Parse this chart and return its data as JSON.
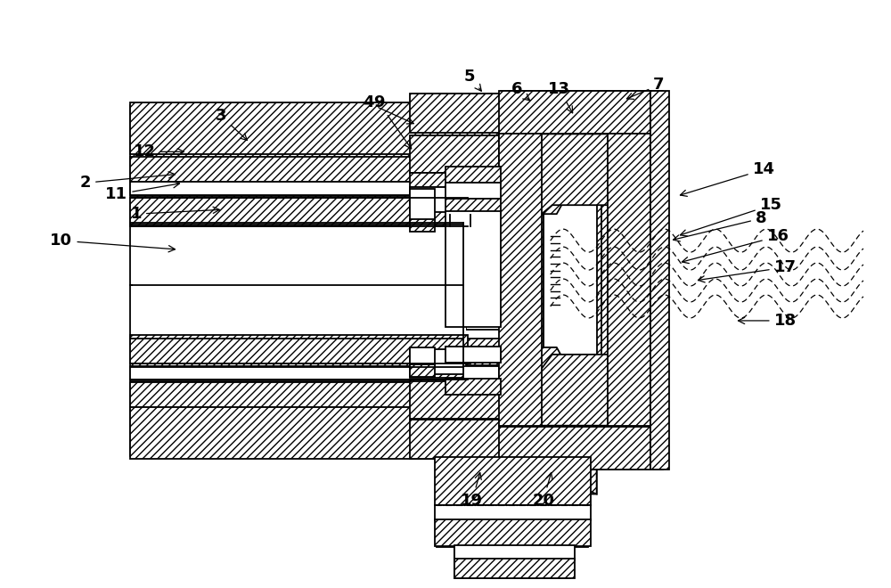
{
  "bg_color": "#ffffff",
  "lc": "#000000",
  "fig_width": 10.0,
  "fig_height": 6.6,
  "dpi": 100,
  "label_fs": 13
}
